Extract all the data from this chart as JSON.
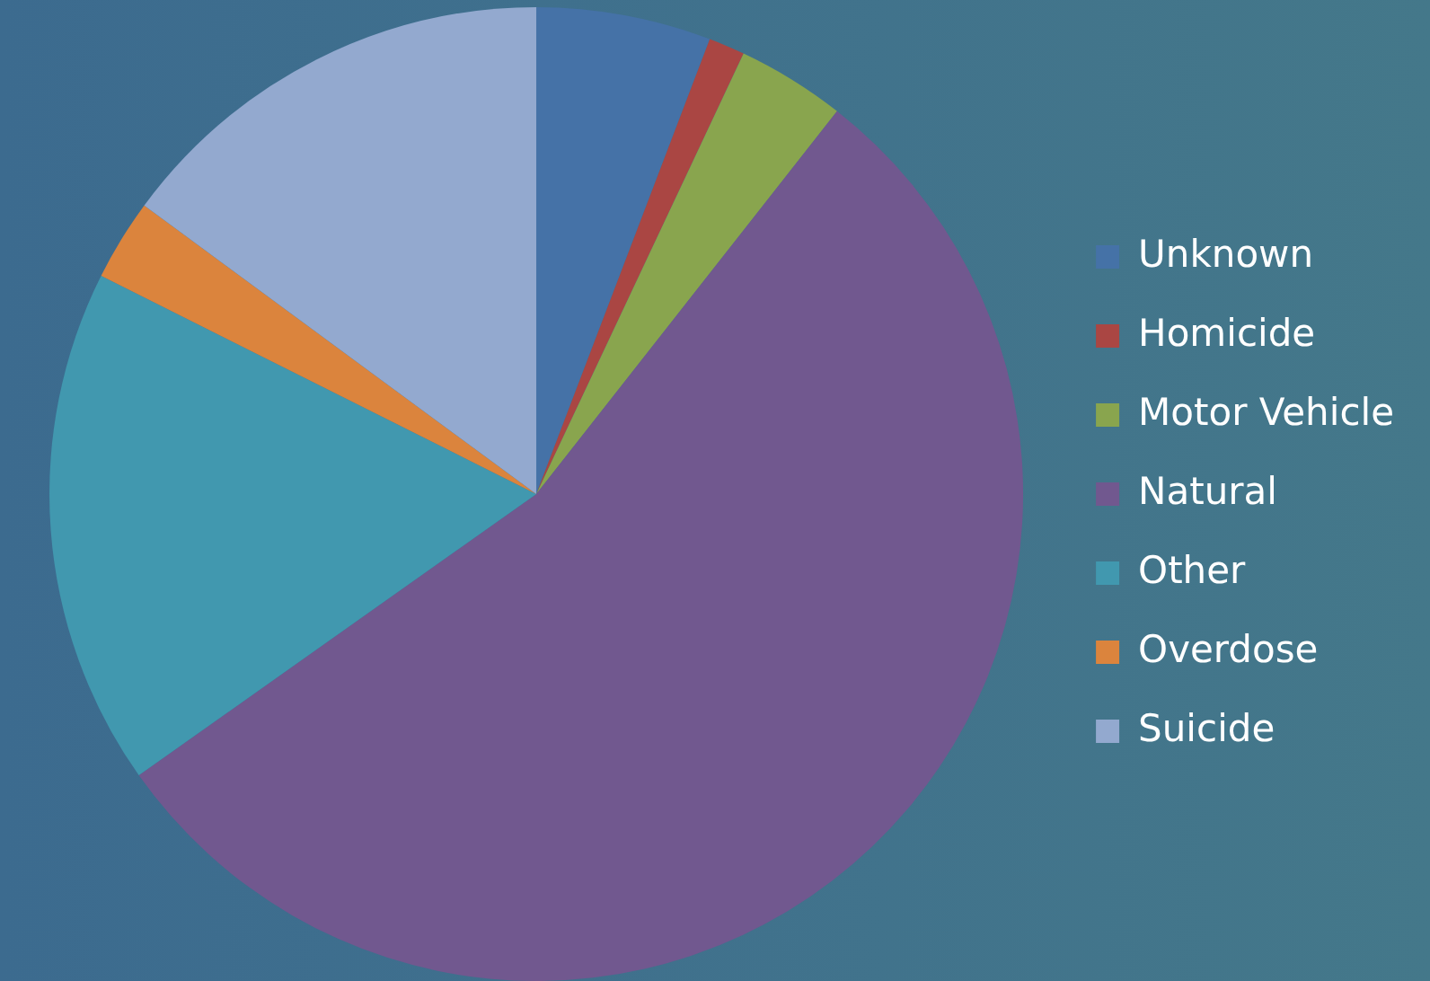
{
  "chart_data": {
    "type": "pie",
    "categories": [
      "Unknown",
      "Homicide",
      "Motor Vehicle",
      "Natural",
      "Other",
      "Overdose",
      "Suicide"
    ],
    "values": [
      5.8,
      1.2,
      3.6,
      54.6,
      17.2,
      2.7,
      14.9
    ],
    "colors": [
      "#4572a7",
      "#aa4643",
      "#89a54e",
      "#71588f",
      "#4198af",
      "#db843d",
      "#93a9cf"
    ],
    "legend": "right"
  }
}
